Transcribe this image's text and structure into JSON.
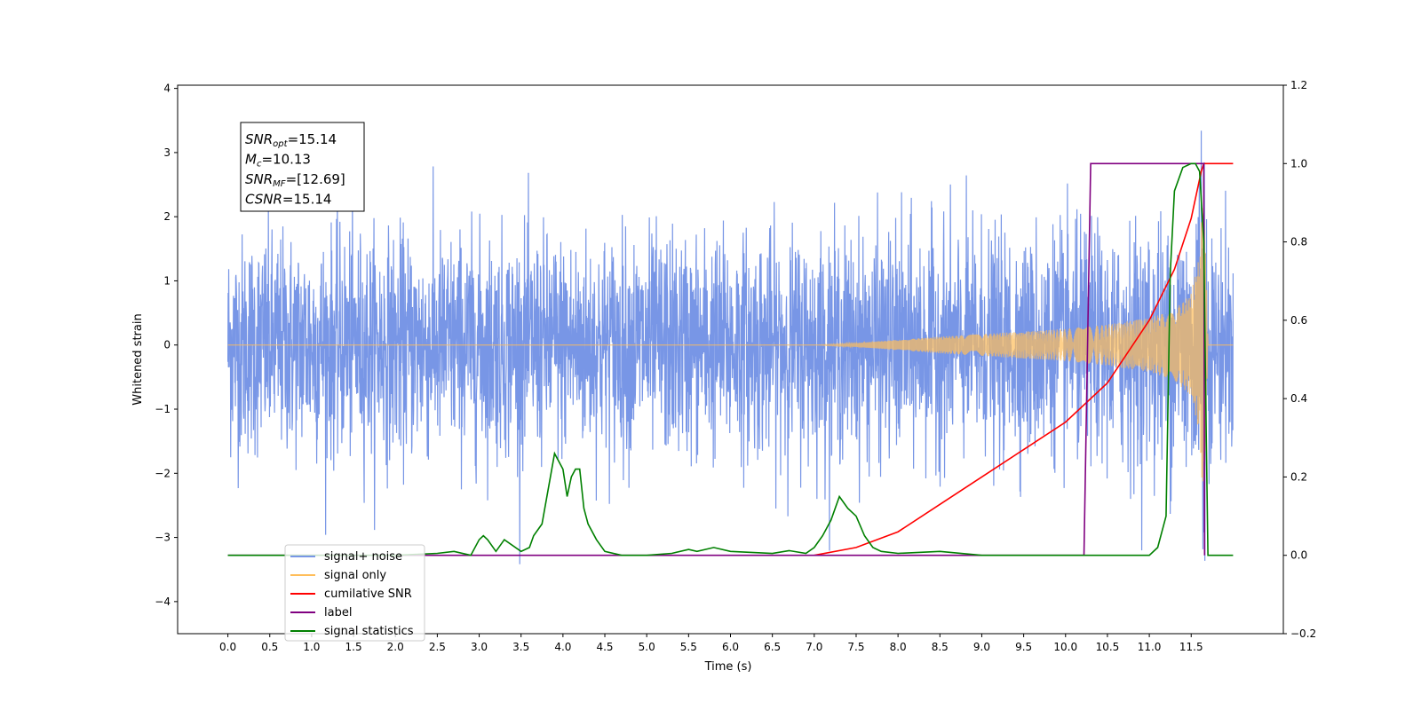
{
  "chart_data": {
    "type": "line",
    "xlabel": "Time (s)",
    "ylabel": "Whitened strain",
    "xlim": [
      -0.6,
      12.6
    ],
    "ylim": [
      -4.5,
      4.05
    ],
    "y2lim": [
      -0.2,
      1.2
    ],
    "x_ticks": [
      0.0,
      0.5,
      1.0,
      1.5,
      2.0,
      2.5,
      3.0,
      3.5,
      4.0,
      4.5,
      5.0,
      5.5,
      6.0,
      6.5,
      7.0,
      7.5,
      8.0,
      8.5,
      9.0,
      9.5,
      10.0,
      10.5,
      11.0,
      11.5
    ],
    "y_ticks": [
      4,
      3,
      2,
      1,
      0,
      -1,
      -2,
      -3,
      -4
    ],
    "y2_ticks": [
      1.2,
      1.0,
      0.8,
      0.6,
      0.4,
      0.2,
      0.0,
      -0.2
    ],
    "grid": false,
    "legend_position": "lower-left",
    "annotation_lines": [
      {
        "main": "SNR",
        "sub": "opt",
        "value": "=15.14"
      },
      {
        "main": "M",
        "sub": "c",
        "value": "=10.13"
      },
      {
        "main": "SNR",
        "sub": "MF",
        "value": "=[12.69]"
      },
      {
        "main": "CSNR",
        "sub": "",
        "value": "=15.14"
      }
    ],
    "series": [
      {
        "name": "signal+ noise",
        "color": "#7896e6",
        "axis": "left",
        "noise_sigma": 0.85,
        "x_range": [
          0.0,
          12.0
        ]
      },
      {
        "name": "signal only",
        "color": "#ffbe5a",
        "axis": "left",
        "envelope": {
          "x": [
            0.0,
            7.0,
            7.5,
            8.0,
            8.5,
            9.0,
            9.5,
            10.0,
            10.5,
            11.0,
            11.3,
            11.5,
            11.6,
            11.65,
            11.7,
            12.0
          ],
          "amplitude": [
            0.0,
            0.0,
            0.03,
            0.08,
            0.13,
            0.17,
            0.21,
            0.25,
            0.32,
            0.42,
            0.55,
            0.8,
            1.4,
            2.7,
            0.0,
            0.0
          ]
        }
      },
      {
        "name": "cumilative SNR",
        "color": "#ff0000",
        "axis": "right",
        "x": [
          7.0,
          7.5,
          8.0,
          8.5,
          9.0,
          9.5,
          10.0,
          10.5,
          11.0,
          11.3,
          11.5,
          11.62,
          11.65,
          12.0
        ],
        "y": [
          0.0,
          0.02,
          0.06,
          0.13,
          0.2,
          0.27,
          0.34,
          0.44,
          0.6,
          0.73,
          0.86,
          0.98,
          1.0,
          1.0
        ]
      },
      {
        "name": "label",
        "color": "#800080",
        "axis": "right",
        "x": [
          0.0,
          10.22,
          10.3,
          11.65,
          11.66
        ],
        "y": [
          0.0,
          0.0,
          1.0,
          1.0,
          0.0
        ]
      },
      {
        "name": "signal statistics",
        "color": "#008000",
        "axis": "right",
        "x": [
          0.0,
          2.0,
          2.5,
          2.7,
          2.9,
          3.0,
          3.05,
          3.1,
          3.2,
          3.3,
          3.5,
          3.6,
          3.65,
          3.75,
          3.85,
          3.9,
          4.0,
          4.05,
          4.1,
          4.15,
          4.2,
          4.25,
          4.3,
          4.4,
          4.5,
          4.7,
          5.0,
          5.3,
          5.5,
          5.6,
          5.8,
          6.0,
          6.5,
          6.7,
          6.9,
          7.0,
          7.1,
          7.2,
          7.3,
          7.4,
          7.5,
          7.6,
          7.7,
          7.8,
          8.0,
          8.5,
          9.0,
          11.0,
          11.1,
          11.2,
          11.25,
          11.3,
          11.4,
          11.5,
          11.55,
          11.6,
          11.65,
          11.68,
          11.7,
          12.0
        ],
        "y": [
          0.0,
          0.0,
          0.005,
          0.01,
          0.0,
          0.04,
          0.05,
          0.04,
          0.01,
          0.04,
          0.01,
          0.02,
          0.05,
          0.08,
          0.2,
          0.26,
          0.22,
          0.15,
          0.2,
          0.22,
          0.22,
          0.12,
          0.08,
          0.04,
          0.01,
          0.0,
          0.0,
          0.005,
          0.015,
          0.01,
          0.02,
          0.01,
          0.005,
          0.012,
          0.005,
          0.02,
          0.05,
          0.09,
          0.15,
          0.12,
          0.1,
          0.05,
          0.02,
          0.01,
          0.005,
          0.01,
          0.0,
          0.0,
          0.02,
          0.1,
          0.72,
          0.93,
          0.99,
          1.0,
          1.0,
          0.98,
          0.8,
          0.3,
          0.0,
          0.0
        ]
      }
    ]
  }
}
